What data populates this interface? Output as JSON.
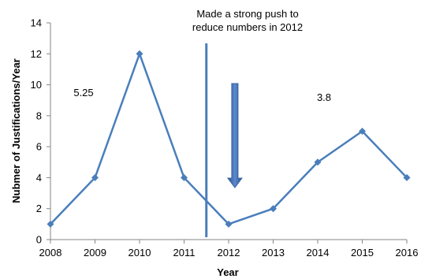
{
  "chart_data": {
    "type": "line",
    "xlabel": "Year",
    "ylabel": "Nubmer of Justifications/Year",
    "categories": [
      "2008",
      "2009",
      "2010",
      "2011",
      "2012",
      "2013",
      "2014",
      "2015",
      "2016"
    ],
    "series": [
      {
        "values": [
          1,
          4,
          12,
          4,
          1,
          2,
          5,
          7,
          4
        ]
      }
    ],
    "ylim": [
      0,
      14
    ],
    "yticks": [
      0,
      2,
      4,
      6,
      8,
      10,
      12,
      14
    ],
    "grid": false,
    "legend": "none",
    "annotations": [
      {
        "id": "note-push",
        "lines": [
          "Made a strong push to",
          "reduce numbers in 2012"
        ]
      },
      {
        "id": "avg-before",
        "text": "5.25"
      },
      {
        "id": "avg-after",
        "text": "3.8"
      }
    ],
    "divider_x": 2011.5,
    "colors": {
      "series": "#4a7ebb",
      "marker": "#4a7ebb",
      "divider": "#4a7ebb",
      "arrow": "#3a64a0",
      "axis": "#868686"
    }
  }
}
